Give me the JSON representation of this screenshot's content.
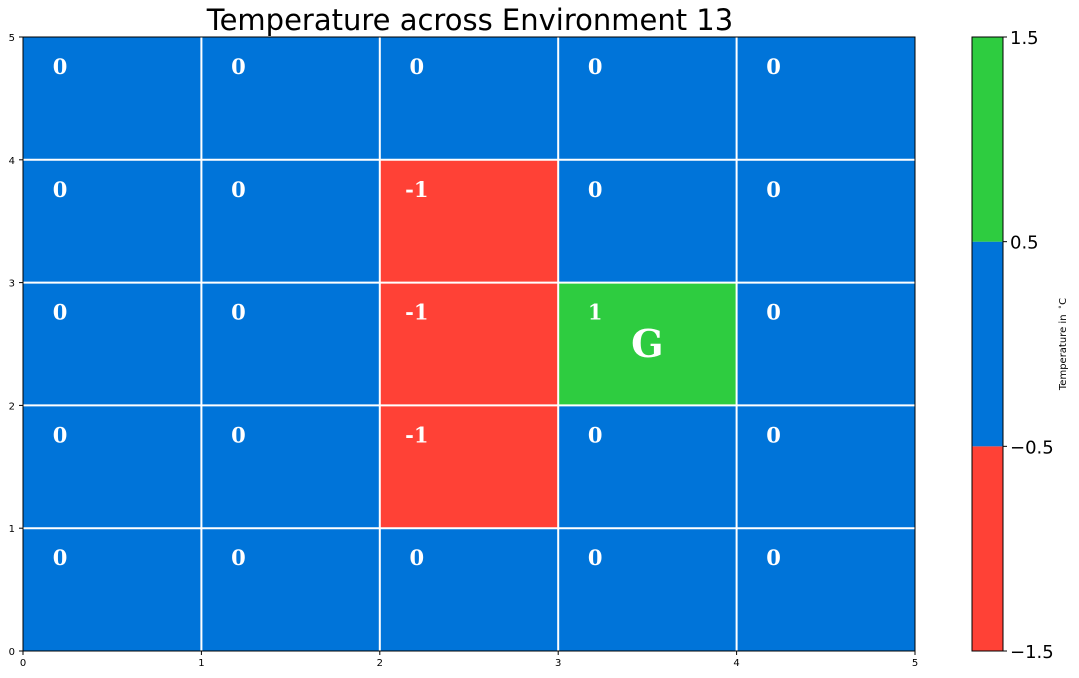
{
  "chart_data": {
    "type": "heatmap",
    "title": "Temperature across Environment 13",
    "xlabel": "",
    "ylabel": "",
    "xlim": [
      0,
      5
    ],
    "ylim": [
      0,
      5
    ],
    "x_ticks": [
      "0",
      "1",
      "2",
      "3",
      "4",
      "5"
    ],
    "y_ticks": [
      "0",
      "1",
      "2",
      "3",
      "4",
      "5"
    ],
    "grid": true,
    "rows_top_to_bottom": [
      [
        0,
        0,
        0,
        0,
        0
      ],
      [
        0,
        0,
        -1,
        0,
        0
      ],
      [
        0,
        0,
        -1,
        1,
        0
      ],
      [
        0,
        0,
        -1,
        0,
        0
      ],
      [
        0,
        0,
        0,
        0,
        0
      ]
    ],
    "cell_labels_top_to_bottom": [
      [
        "0",
        "0",
        "0",
        "0",
        "0"
      ],
      [
        "0",
        "0",
        "-1",
        "0",
        "0"
      ],
      [
        "0",
        "0",
        "-1",
        "1",
        "0"
      ],
      [
        "0",
        "0",
        "-1",
        "0",
        "0"
      ],
      [
        "0",
        "0",
        "0",
        "0",
        "0"
      ]
    ],
    "markers": [
      {
        "text": "G",
        "row_top_to_bottom": 2,
        "col": 3
      }
    ],
    "colorbar": {
      "label": "Temperature in $^\\circ$C",
      "boundaries": [
        -1.5,
        -0.5,
        0.5,
        1.5
      ],
      "tick_labels": [
        "−1.5",
        "−0.5",
        "0.5",
        "1.5"
      ],
      "colors": [
        "#ff4136",
        "#0074d9",
        "#2ecc40"
      ]
    },
    "colors": {
      "negative": "#ff4136",
      "zero": "#0074d9",
      "positive": "#2ecc40",
      "grid": "#ffffff"
    }
  }
}
